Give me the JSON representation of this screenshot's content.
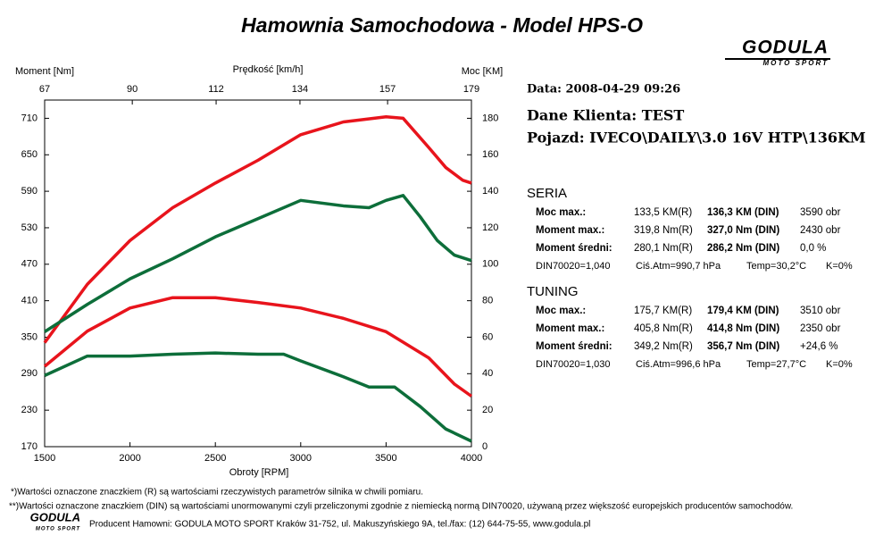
{
  "header": {
    "title": "Hamownia Samochodowa   -   Model HPS-O",
    "logo": "GODULA",
    "logo_sub": "MOTO SPORT",
    "date": "Data: 2008-04-29  09:26",
    "client": "Dane Klienta: TEST",
    "vehicle": "Pojazd: IVECO\\DAILY\\3.0 16V HTP\\136KM"
  },
  "chart_data": {
    "type": "line",
    "ylabel": "Moment [Nm]",
    "y2label": "Moc [KM]",
    "xlabel": "Obroty [RPM]",
    "x2label": "Prędkość [km/h]",
    "xlim": [
      1500,
      4000
    ],
    "xticks": [
      1500,
      2000,
      2500,
      3000,
      3500,
      4000
    ],
    "x2lim": [
      67,
      179
    ],
    "x2ticks": [
      67,
      90,
      112,
      134,
      157,
      179
    ],
    "ylim": [
      170,
      740
    ],
    "yticks": [
      170,
      230,
      290,
      350,
      410,
      470,
      530,
      590,
      650,
      710
    ],
    "y2lim": [
      0,
      190
    ],
    "y2ticks": [
      0,
      20,
      40,
      60,
      80,
      100,
      120,
      140,
      160,
      180
    ],
    "series": [
      {
        "name": "TUNING Moc",
        "color": "#e8141c",
        "axis": "y2",
        "x": [
          1500,
          1750,
          2000,
          2250,
          2500,
          2750,
          3000,
          3250,
          3500,
          3600,
          3750,
          3850,
          3950,
          4000
        ],
        "values": [
          57,
          89,
          113,
          131,
          144.5,
          157,
          171,
          178,
          180.8,
          180,
          164,
          153,
          146,
          144.5
        ]
      },
      {
        "name": "SERIA Moc",
        "color": "#0d6e3a",
        "axis": "y2",
        "x": [
          1500,
          1750,
          2000,
          2250,
          2500,
          2750,
          3000,
          3250,
          3400,
          3500,
          3600,
          3700,
          3800,
          3900,
          4000
        ],
        "values": [
          63,
          78,
          92,
          103,
          115,
          125,
          135,
          132,
          131,
          135,
          137.7,
          126,
          113,
          105,
          102
        ]
      },
      {
        "name": "TUNING Moment",
        "color": "#e8141c",
        "x": [
          1500,
          1750,
          2000,
          2250,
          2500,
          2750,
          3000,
          3250,
          3500,
          3750,
          3900,
          4000
        ],
        "values": [
          302,
          360,
          398,
          415,
          415,
          407,
          398,
          381,
          359,
          316,
          273,
          253
        ]
      },
      {
        "name": "SERIA Moment",
        "color": "#0d6e3a",
        "x": [
          1500,
          1750,
          2000,
          2250,
          2500,
          2750,
          2900,
          3000,
          3250,
          3400,
          3550,
          3700,
          3850,
          4000
        ],
        "values": [
          287,
          319,
          319,
          322,
          324,
          322,
          322,
          311,
          285,
          268,
          268,
          236,
          199,
          179
        ]
      }
    ]
  },
  "seria": {
    "title": "SERIA",
    "color": "#0d6e3a",
    "rows": [
      [
        "Moc max.:",
        "133,5 KM(R)",
        "136,3 KM (DIN)",
        "3590 obr"
      ],
      [
        "Moment max.:",
        "319,8 Nm(R)",
        "327,0 Nm (DIN)",
        "2430 obr"
      ],
      [
        "Moment średni:",
        "280,1 Nm(R)",
        "286,2 Nm (DIN)",
        "0,0 %"
      ]
    ],
    "footer": [
      "DIN70020=1,040",
      "Ciś.Atm=990,7 hPa",
      "Temp=30,2°C",
      "K=0%"
    ]
  },
  "tuning": {
    "title": "TUNING",
    "color": "#e8141c",
    "rows": [
      [
        "Moc max.:",
        "175,7 KM(R)",
        "179,4 KM (DIN)",
        "3510 obr"
      ],
      [
        "Moment max.:",
        "405,8 Nm(R)",
        "414,8 Nm (DIN)",
        "2350 obr"
      ],
      [
        "Moment średni:",
        "349,2 Nm(R)",
        "356,7 Nm (DIN)",
        "+24,6 %"
      ]
    ],
    "footer": [
      "DIN70020=1,030",
      "Ciś.Atm=996,6 hPa",
      "Temp=27,7°C",
      "K=0%"
    ]
  },
  "notes": [
    "*)Wartości oznaczone znaczkiem (R) są wartościami rzeczywistych parametrów silnika w chwili pomiaru.",
    "**)Wartości oznaczone znaczkiem (DIN) są wartościami unormowanymi czyli przeliczonymi zgodnie z niemiecką normą DIN70020, używaną przez większość europejskich producentów samochodów.",
    "Producent Hamowni: GODULA MOTO SPORT Kraków 31-752, ul. Makuszyńskiego 9A, tel./fax: (12) 644-75-55, www.godula.pl"
  ]
}
